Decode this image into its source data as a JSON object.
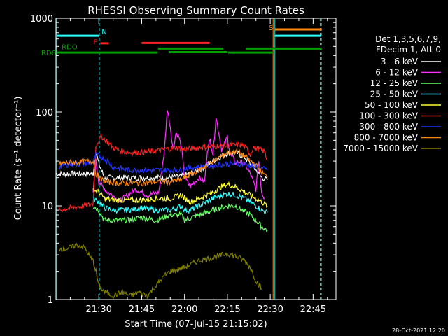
{
  "chart_data": {
    "type": "line",
    "title": "RHESSI Observing Summary Count Rates",
    "xlabel": "Start Time (07-Jul-15 21:15:02)",
    "ylabel": "Count Rate (s⁻¹ detector⁻¹)",
    "yscale": "log",
    "ylim": [
      1,
      1000
    ],
    "xlim_minutes": [
      0,
      98
    ],
    "x_unit": "minutes after 21:15:02",
    "x_ticks": [
      {
        "label": "21:30",
        "t": 15
      },
      {
        "label": "21:45",
        "t": 30
      },
      {
        "label": "22:00",
        "t": 45
      },
      {
        "label": "22:15",
        "t": 60
      },
      {
        "label": "22:30",
        "t": 75
      },
      {
        "label": "22:45",
        "t": 90
      }
    ],
    "y_ticks": [
      {
        "label": "1",
        "v": 1
      },
      {
        "label": "10",
        "v": 10
      },
      {
        "label": "100",
        "v": 100
      },
      {
        "label": "1000",
        "v": 1000
      }
    ],
    "legend_header": [
      "Det 1,3,5,6,7,9,",
      "FDecim 1, Att 0"
    ],
    "legend_placement": "right",
    "timestamp": "28-Oct-2021 12:20",
    "series": [
      {
        "name": "3 - 6 keV",
        "color": "#ffffff",
        "points": [
          [
            0,
            22
          ],
          [
            13,
            22
          ],
          [
            14,
            38
          ],
          [
            15,
            28
          ],
          [
            17,
            20
          ],
          [
            20,
            20
          ],
          [
            25,
            20
          ],
          [
            30,
            20
          ],
          [
            35,
            20
          ],
          [
            40,
            20
          ],
          [
            45,
            21
          ],
          [
            50,
            24
          ],
          [
            55,
            30
          ],
          [
            58,
            34
          ],
          [
            60,
            36
          ],
          [
            63,
            37
          ],
          [
            66,
            33
          ],
          [
            70,
            24
          ],
          [
            72,
            20
          ],
          [
            74,
            19
          ]
        ]
      },
      {
        "name": "6 - 12 keV",
        "color": "#ff33ff",
        "points": [
          [
            13,
            14
          ],
          [
            14,
            30
          ],
          [
            15,
            18
          ],
          [
            18,
            14
          ],
          [
            20,
            13
          ],
          [
            22,
            11
          ],
          [
            25,
            13
          ],
          [
            28,
            15
          ],
          [
            32,
            13
          ],
          [
            36,
            14
          ],
          [
            38,
            40
          ],
          [
            39,
            110
          ],
          [
            40,
            70
          ],
          [
            41,
            40
          ],
          [
            42,
            60
          ],
          [
            43,
            55
          ],
          [
            44,
            40
          ],
          [
            45,
            20
          ],
          [
            47,
            16
          ],
          [
            50,
            20
          ],
          [
            52,
            18
          ],
          [
            53,
            40
          ],
          [
            54,
            50
          ],
          [
            55,
            35
          ],
          [
            56,
            90
          ],
          [
            57,
            60
          ],
          [
            58,
            40
          ],
          [
            59,
            45
          ],
          [
            60,
            55
          ],
          [
            61,
            35
          ],
          [
            62,
            32
          ],
          [
            63,
            28
          ],
          [
            64,
            30
          ],
          [
            66,
            28
          ],
          [
            68,
            22
          ],
          [
            70,
            15
          ],
          [
            71,
            30
          ],
          [
            72,
            14
          ],
          [
            73,
            12
          ]
        ]
      },
      {
        "name": "12 - 25 keV",
        "color": "#66ff66",
        "points": [
          [
            13,
            10
          ],
          [
            15,
            9
          ],
          [
            17,
            7
          ],
          [
            20,
            7
          ],
          [
            25,
            7
          ],
          [
            30,
            7.5
          ],
          [
            35,
            7
          ],
          [
            40,
            8
          ],
          [
            44,
            8
          ],
          [
            45,
            7
          ],
          [
            50,
            8
          ],
          [
            55,
            9
          ],
          [
            60,
            10
          ],
          [
            63,
            10
          ],
          [
            65,
            9
          ],
          [
            68,
            8
          ],
          [
            70,
            7
          ],
          [
            72,
            6
          ],
          [
            74,
            5.5
          ]
        ]
      },
      {
        "name": "25 - 50 keV",
        "color": "#33ffff",
        "points": [
          [
            13,
            12
          ],
          [
            15,
            11
          ],
          [
            17,
            9.5
          ],
          [
            20,
            9
          ],
          [
            25,
            9
          ],
          [
            30,
            9.5
          ],
          [
            35,
            9
          ],
          [
            40,
            9
          ],
          [
            44,
            10
          ],
          [
            45,
            9
          ],
          [
            47,
            9
          ],
          [
            50,
            10
          ],
          [
            55,
            12
          ],
          [
            58,
            13
          ],
          [
            60,
            13.5
          ],
          [
            63,
            13
          ],
          [
            66,
            12
          ],
          [
            70,
            10
          ],
          [
            72,
            9
          ],
          [
            74,
            8.5
          ]
        ]
      },
      {
        "name": "50 - 100 keV",
        "color": "#ffff33",
        "points": [
          [
            13,
            15
          ],
          [
            15,
            14
          ],
          [
            17,
            12
          ],
          [
            20,
            11.5
          ],
          [
            25,
            11.5
          ],
          [
            30,
            11.5
          ],
          [
            35,
            12
          ],
          [
            40,
            12
          ],
          [
            44,
            13
          ],
          [
            45,
            12
          ],
          [
            47,
            11
          ],
          [
            50,
            12
          ],
          [
            55,
            14
          ],
          [
            58,
            16
          ],
          [
            60,
            17
          ],
          [
            63,
            16
          ],
          [
            66,
            14
          ],
          [
            70,
            12
          ],
          [
            72,
            11
          ],
          [
            74,
            10
          ]
        ]
      },
      {
        "name": "100 - 300 keV",
        "color": "#ff2222",
        "points": [
          [
            1,
            9
          ],
          [
            5,
            9.5
          ],
          [
            10,
            10
          ],
          [
            13,
            10.5
          ],
          [
            14,
            45
          ],
          [
            16,
            55
          ],
          [
            18,
            48
          ],
          [
            20,
            42
          ],
          [
            23,
            38
          ],
          [
            26,
            37
          ],
          [
            30,
            37
          ],
          [
            34,
            38
          ],
          [
            38,
            40
          ],
          [
            42,
            42
          ],
          [
            45,
            40
          ],
          [
            50,
            42
          ],
          [
            55,
            43
          ],
          [
            60,
            44
          ],
          [
            65,
            45
          ],
          [
            67,
            40
          ],
          [
            68,
            35
          ],
          [
            69,
            42
          ],
          [
            71,
            40
          ],
          [
            73,
            38
          ],
          [
            74,
            30
          ]
        ]
      },
      {
        "name": "300 - 800 keV",
        "color": "#2233ff",
        "points": [
          [
            1,
            26
          ],
          [
            5,
            28
          ],
          [
            10,
            28
          ],
          [
            13,
            29
          ],
          [
            14,
            35
          ],
          [
            16,
            33
          ],
          [
            18,
            30
          ],
          [
            20,
            26
          ],
          [
            25,
            24
          ],
          [
            30,
            24
          ],
          [
            35,
            24
          ],
          [
            40,
            24
          ],
          [
            44,
            24
          ],
          [
            45,
            25
          ],
          [
            50,
            26
          ],
          [
            55,
            27
          ],
          [
            60,
            28
          ],
          [
            65,
            28
          ],
          [
            68,
            27
          ],
          [
            70,
            26
          ],
          [
            72,
            25
          ],
          [
            74,
            24
          ]
        ]
      },
      {
        "name": "800 - 7000 keV",
        "color": "#ff8811",
        "points": [
          [
            1,
            28
          ],
          [
            5,
            29
          ],
          [
            10,
            29.5
          ],
          [
            13,
            30
          ],
          [
            14,
            22
          ],
          [
            16,
            19
          ],
          [
            18,
            18
          ],
          [
            22,
            17.5
          ],
          [
            26,
            17.5
          ],
          [
            30,
            17.5
          ],
          [
            35,
            18
          ],
          [
            40,
            18
          ],
          [
            44,
            19
          ],
          [
            45,
            20
          ],
          [
            50,
            24
          ],
          [
            55,
            30
          ],
          [
            58,
            34
          ],
          [
            60,
            37
          ],
          [
            63,
            38
          ],
          [
            66,
            34
          ],
          [
            70,
            27
          ],
          [
            72,
            23
          ],
          [
            74,
            20
          ]
        ]
      },
      {
        "name": "7000 - 15000 keV",
        "color": "#808000",
        "points": [
          [
            1,
            3.5
          ],
          [
            4,
            3.5
          ],
          [
            7,
            3.8
          ],
          [
            10,
            3.6
          ],
          [
            12,
            2.8
          ],
          [
            13,
            2.6
          ],
          [
            14,
            2.0
          ],
          [
            15,
            1.4
          ],
          [
            17,
            1.2
          ],
          [
            20,
            1.1
          ],
          [
            23,
            1.2
          ],
          [
            26,
            1.1
          ],
          [
            29,
            1.2
          ],
          [
            32,
            1.1
          ],
          [
            35,
            1.4
          ],
          [
            38,
            1.8
          ],
          [
            40,
            2.0
          ],
          [
            45,
            2.2
          ],
          [
            50,
            2.6
          ],
          [
            55,
            2.8
          ],
          [
            60,
            3.1
          ],
          [
            63,
            2.9
          ],
          [
            66,
            2.6
          ],
          [
            68,
            2.2
          ],
          [
            70,
            1.6
          ],
          [
            72,
            1.3
          ]
        ]
      }
    ],
    "annotations": [
      {
        "label": "N",
        "color": "#00ffff"
      },
      {
        "label": "F",
        "color": "#ff2222"
      },
      {
        "label": "S",
        "color": "#ff8811"
      },
      {
        "label": "RDO",
        "color": "#00a000"
      },
      {
        "label": "RD6",
        "color": "#00a000"
      }
    ]
  }
}
